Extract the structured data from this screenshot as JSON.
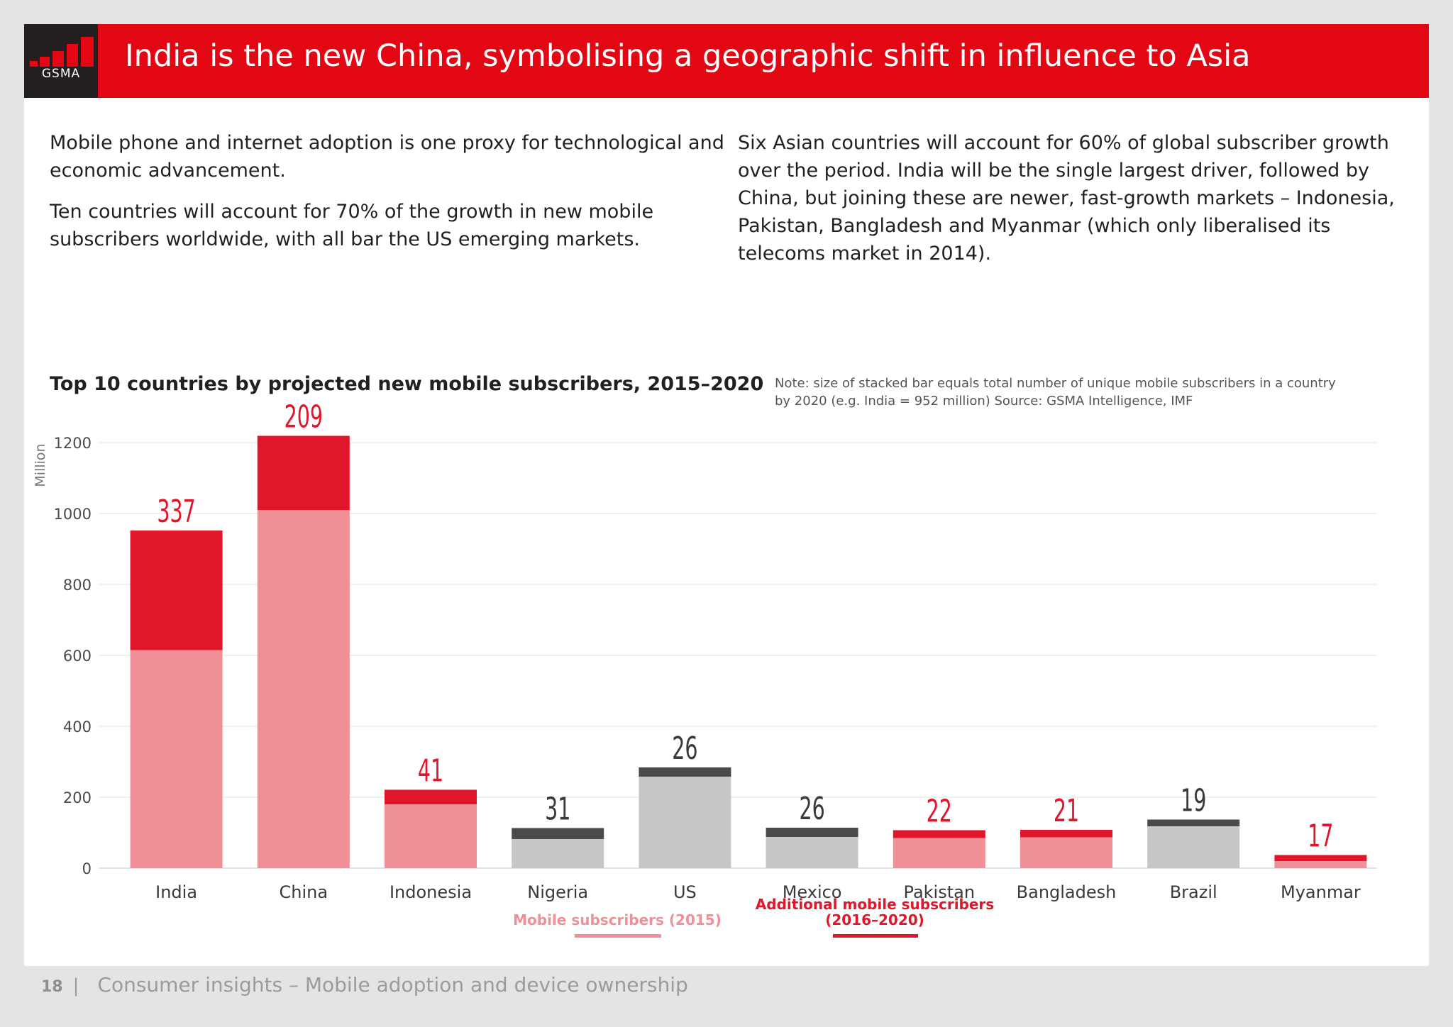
{
  "header": {
    "logo_text": "GSMA",
    "title": "India is the new China, symbolising a geographic shift in influence to Asia"
  },
  "intro": {
    "left_paragraphs": [
      "Mobile phone and internet adoption is one proxy for technological and economic advancement.",
      "Ten countries will account for 70% of the growth in new mobile subscribers worldwide, with all bar the US emerging markets."
    ],
    "right_paragraph": "Six Asian countries will account for 60% of global subscriber growth over the period. India will be the single largest driver, followed by China, but joining these are newer, fast-growth markets – Indonesia, Pakistan, Bangladesh and Myanmar (which only liberalised its telecoms market in 2014)."
  },
  "chart_data": {
    "type": "bar",
    "stacked": true,
    "title": "Top 10 countries by projected new mobile subscribers, 2015–2020",
    "note_lines": [
      "Note: size of stacked bar equals total number of unique mobile subscribers in a country",
      "by 2020 (e.g. India = 952 million)   Source: GSMA Intelligence, IMF"
    ],
    "ylabel": "Million",
    "ylim": [
      0,
      1200
    ],
    "yticks": [
      0,
      200,
      400,
      600,
      800,
      1000,
      1200
    ],
    "grid": true,
    "categories": [
      "India",
      "China",
      "Indonesia",
      "Nigeria",
      "US",
      "Mexico",
      "Pakistan",
      "Bangladesh",
      "Brazil",
      "Myanmar"
    ],
    "series": [
      {
        "name": "Mobile subscribers (2015)",
        "values": [
          615,
          1010,
          180,
          82,
          258,
          88,
          85,
          87,
          118,
          20
        ]
      },
      {
        "name": "Additional mobile subscribers (2016–2020)",
        "values": [
          337,
          209,
          41,
          31,
          26,
          26,
          22,
          21,
          19,
          17
        ]
      }
    ],
    "asian_markets": [
      "India",
      "China",
      "Indonesia",
      "Pakistan",
      "Bangladesh",
      "Myanmar"
    ],
    "colors": {
      "asia_base": "#f08f95",
      "asia_additional": "#e0162b",
      "other_base": "#c8c7c8",
      "other_additional": "#4a494b",
      "asia_label": "#e0162b",
      "other_label": "#3a3a3a"
    },
    "legend": {
      "placement": "bottom",
      "base_label": "Mobile subscribers (2015)",
      "additional_label_lines": [
        "Additional mobile subscribers",
        "(2016–2020)"
      ]
    }
  },
  "footer": {
    "page_number": "18",
    "section_title": "Consumer insights – Mobile adoption and device ownership"
  }
}
